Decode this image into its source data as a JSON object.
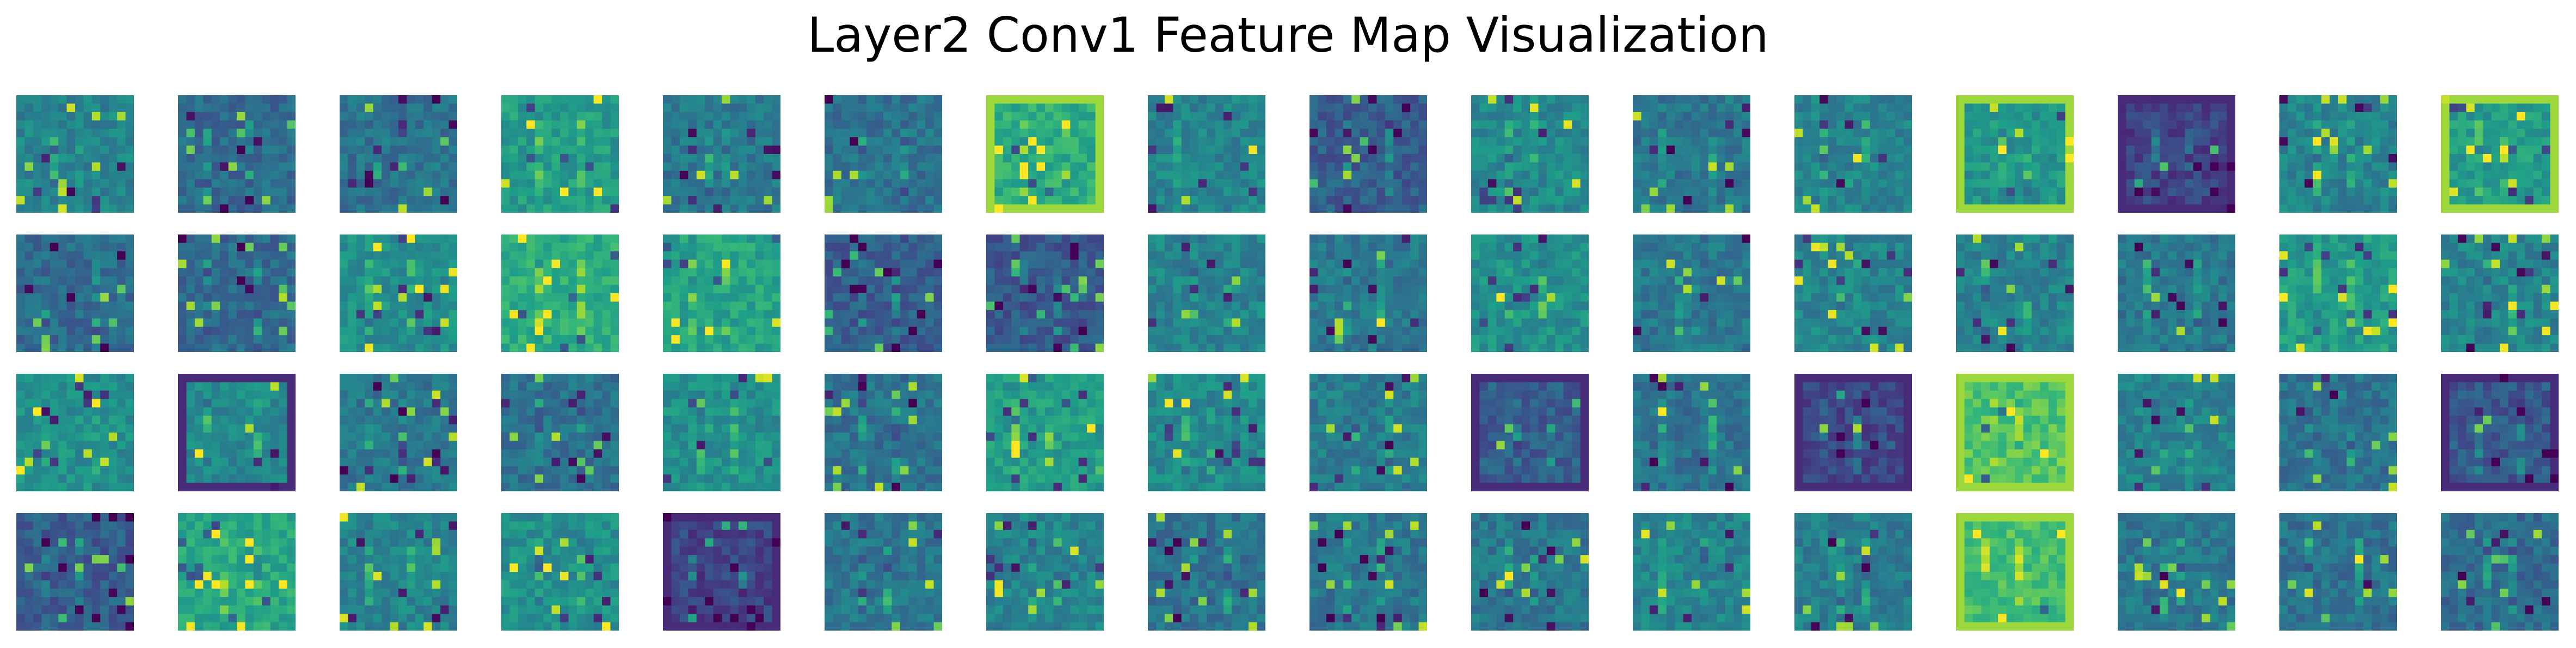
{
  "figure": {
    "title": "Layer2 Conv1 Feature Map Visualization"
  },
  "grid": {
    "rows": 4,
    "cols": 16,
    "map_resolution": 14
  },
  "colormap": {
    "name": "viridis",
    "stops": [
      "#440154",
      "#482878",
      "#3e4989",
      "#31688e",
      "#26828e",
      "#1f9e89",
      "#35b779",
      "#6ece58",
      "#b5de2b",
      "#fde725"
    ]
  },
  "feature_maps": {
    "count": 64,
    "base_levels": [
      0.45,
      0.35,
      0.38,
      0.55,
      0.4,
      0.38,
      0.62,
      0.45,
      0.3,
      0.48,
      0.4,
      0.45,
      0.52,
      0.2,
      0.45,
      0.55,
      0.35,
      0.35,
      0.5,
      0.62,
      0.58,
      0.3,
      0.28,
      0.45,
      0.4,
      0.5,
      0.4,
      0.45,
      0.45,
      0.4,
      0.55,
      0.45,
      0.5,
      0.48,
      0.4,
      0.38,
      0.5,
      0.38,
      0.55,
      0.48,
      0.42,
      0.3,
      0.38,
      0.22,
      0.72,
      0.45,
      0.38,
      0.28,
      0.3,
      0.6,
      0.45,
      0.5,
      0.2,
      0.4,
      0.45,
      0.38,
      0.4,
      0.4,
      0.45,
      0.42,
      0.7,
      0.4,
      0.38,
      0.35
    ],
    "border_highlight": [
      15,
      6,
      12,
      44,
      60
    ],
    "low_border": [
      13,
      33,
      41,
      43,
      47,
      52
    ]
  }
}
